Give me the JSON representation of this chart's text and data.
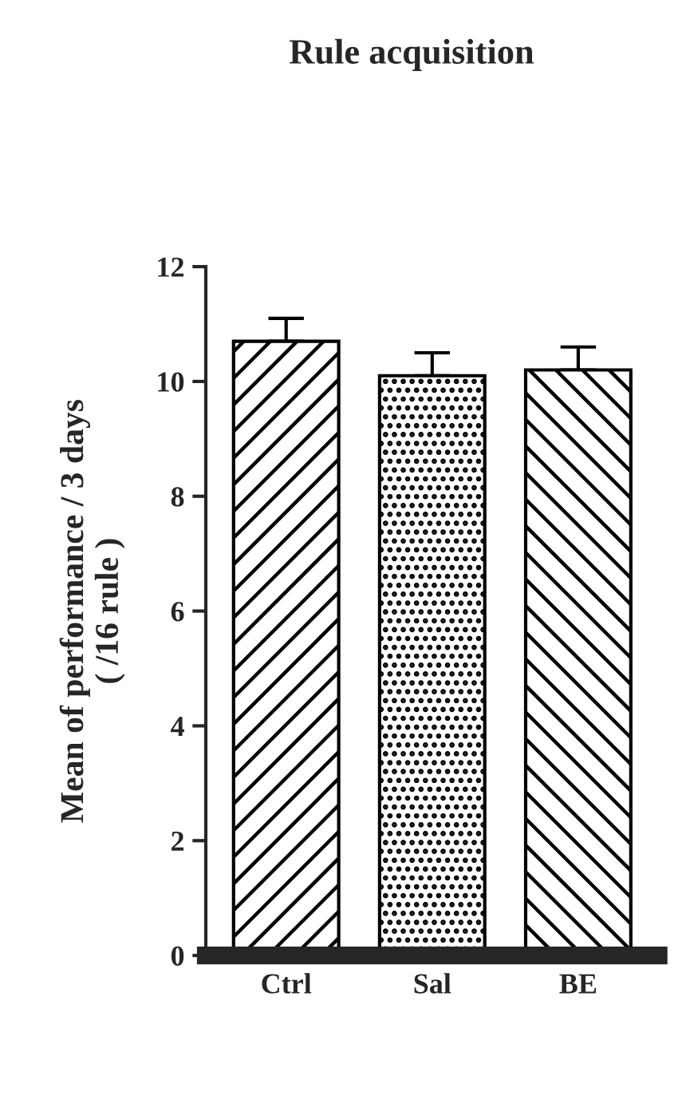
{
  "chart_data": {
    "type": "bar",
    "title": "Rule acquisition",
    "ylabel": "Mean of performance / 3 days\n( /16 rule )",
    "categories": [
      "Ctrl",
      "Sal",
      "BE"
    ],
    "values": [
      10.7,
      10.1,
      10.2
    ],
    "errors": [
      [
        10.7,
        11.1
      ],
      [
        10.1,
        10.5
      ],
      [
        10.2,
        10.6
      ]
    ],
    "ylim": [
      0,
      12
    ],
    "yticks": [
      0,
      2,
      4,
      6,
      8,
      10,
      12
    ],
    "grid": false
  }
}
